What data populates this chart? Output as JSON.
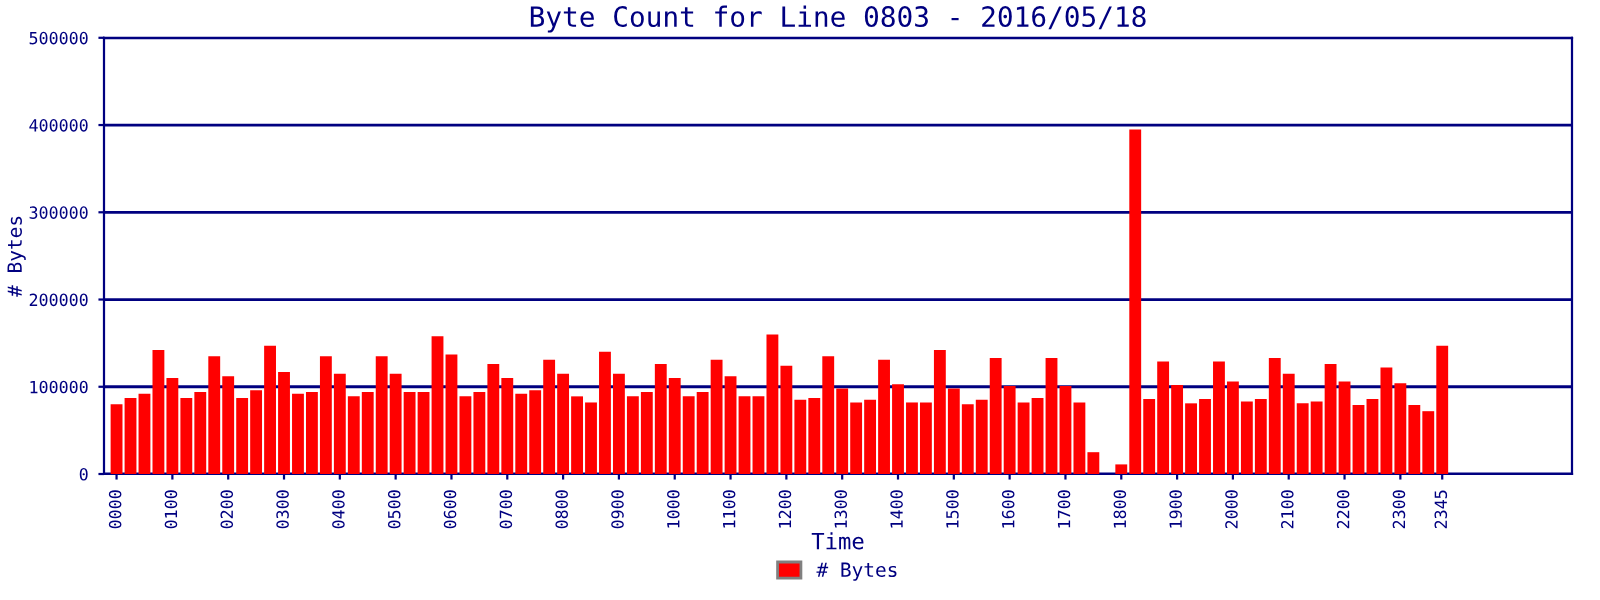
{
  "chart_data": {
    "type": "bar",
    "title": "Byte Count for Line 0803 - 2016/05/18",
    "xlabel": "Time",
    "ylabel": "# Bytes",
    "categories": [
      "0000",
      null,
      null,
      null,
      "0100",
      null,
      null,
      null,
      "0200",
      null,
      null,
      null,
      "0300",
      null,
      null,
      null,
      "0400",
      null,
      null,
      null,
      "0500",
      null,
      null,
      null,
      "0600",
      null,
      null,
      null,
      "0700",
      null,
      null,
      null,
      "0800",
      null,
      null,
      null,
      "0900",
      null,
      null,
      null,
      "1000",
      null,
      null,
      null,
      "1100",
      null,
      null,
      null,
      "1200",
      null,
      null,
      null,
      "1300",
      null,
      null,
      null,
      "1400",
      null,
      null,
      null,
      "1500",
      null,
      null,
      null,
      "1600",
      null,
      null,
      null,
      "1700",
      null,
      null,
      null,
      "1800",
      null,
      null,
      null,
      "1900",
      null,
      null,
      null,
      "2000",
      null,
      null,
      null,
      "2100",
      null,
      null,
      null,
      "2200",
      null,
      null,
      null,
      "2300",
      null,
      null,
      "2345"
    ],
    "series": [
      {
        "name": "# Bytes",
        "color": "#ff0000",
        "values": [
          80000,
          87000,
          92000,
          142000,
          110000,
          87000,
          94000,
          135000,
          112000,
          87000,
          96000,
          147000,
          117000,
          92000,
          94000,
          135000,
          115000,
          89000,
          94000,
          135000,
          115000,
          94000,
          94000,
          158000,
          137000,
          89000,
          94000,
          126000,
          110000,
          92000,
          96000,
          131000,
          115000,
          89000,
          82000,
          140000,
          115000,
          89000,
          94000,
          126000,
          110000,
          89000,
          94000,
          131000,
          112000,
          89000,
          89000,
          160000,
          124000,
          85000,
          87000,
          135000,
          98000,
          82000,
          85000,
          131000,
          103000,
          82000,
          82000,
          142000,
          98000,
          80000,
          85000,
          133000,
          101000,
          82000,
          87000,
          133000,
          101000,
          82000,
          25000,
          0,
          11000,
          395000,
          86000,
          129000,
          102000,
          81000,
          86000,
          129000,
          106000,
          83000,
          86000,
          133000,
          115000,
          81000,
          83000,
          126000,
          106000,
          79000,
          86000,
          122000,
          104000,
          79000,
          72000,
          147000
        ]
      }
    ],
    "ylim": [
      0,
      500000
    ],
    "yticks": [
      0,
      100000,
      200000,
      300000,
      400000,
      500000
    ],
    "grid": "y",
    "legend": "bottom"
  }
}
